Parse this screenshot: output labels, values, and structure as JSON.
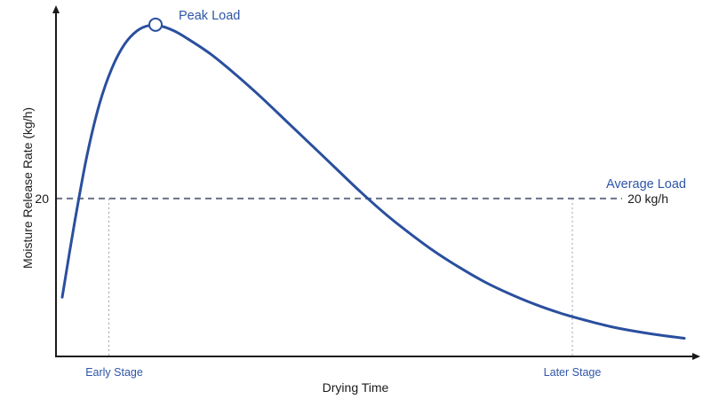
{
  "chart_data": {
    "type": "line",
    "xlabel": "Drying Time",
    "ylabel": "Moisture Release Rate (kg/h)",
    "ylim": [
      0,
      44
    ],
    "xlim": [
      0,
      100
    ],
    "y_ticks": [
      {
        "value": 20,
        "label": "20"
      }
    ],
    "x_annotations": [
      {
        "x": 7.5,
        "label": "Early Stage"
      },
      {
        "x": 82,
        "label": "Later Stage"
      }
    ],
    "series": [
      {
        "name": "",
        "color": "#2a4f9e",
        "x": [
          0,
          2,
          4,
          6,
          8,
          10,
          12,
          14,
          16,
          18,
          20,
          24,
          28,
          32,
          36,
          40,
          44,
          48,
          52,
          56,
          60,
          64,
          68,
          72,
          76,
          80,
          84,
          88,
          92,
          96,
          100
        ],
        "y": [
          7.5,
          17,
          25.5,
          32,
          36.5,
          39.5,
          41.2,
          41.9,
          41.8,
          41.2,
          40.3,
          38.2,
          35.6,
          32.8,
          29.8,
          26.8,
          23.8,
          20.8,
          18,
          15.5,
          13.2,
          11.2,
          9.4,
          7.9,
          6.6,
          5.5,
          4.6,
          3.8,
          3.2,
          2.7,
          2.3
        ]
      }
    ],
    "peak": {
      "x": 15,
      "y": 42,
      "label": "Peak Load"
    },
    "average": {
      "y": 20,
      "label": "Average Load",
      "value_label": "20 kg/h"
    }
  }
}
